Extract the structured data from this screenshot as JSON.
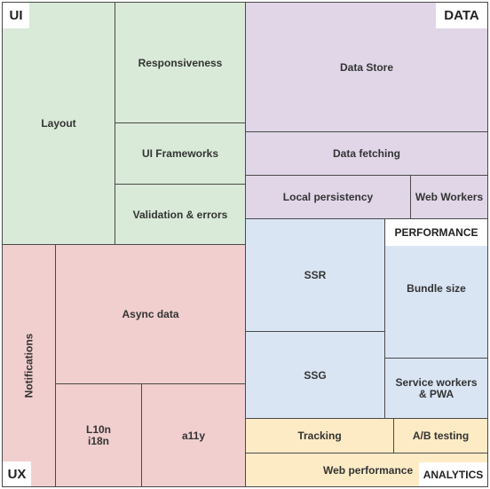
{
  "sections": {
    "ui": {
      "label": "UI",
      "color": "#d9ead8",
      "items": [
        "Layout",
        "Responsiveness",
        "UI Frameworks",
        "Validation & errors"
      ]
    },
    "data": {
      "label": "DATA",
      "color": "#e0d6e8",
      "items": [
        "Data Store",
        "Data fetching",
        "Local persistency",
        "Web Workers"
      ]
    },
    "ux": {
      "label": "UX",
      "color": "#f1cfcf",
      "items": [
        "Notifications",
        "Async data",
        "L10n\ni18n",
        "a11y"
      ]
    },
    "performance": {
      "label": "PERFORMANCE",
      "color": "#dae5f4",
      "items": [
        "SSR",
        "Bundle size",
        "SSG",
        "Service workers\n& PWA"
      ]
    },
    "analytics": {
      "label": "ANALYTICS",
      "color": "#fdebc6",
      "items": [
        "Tracking",
        "A/B testing",
        "Web performance"
      ]
    }
  }
}
